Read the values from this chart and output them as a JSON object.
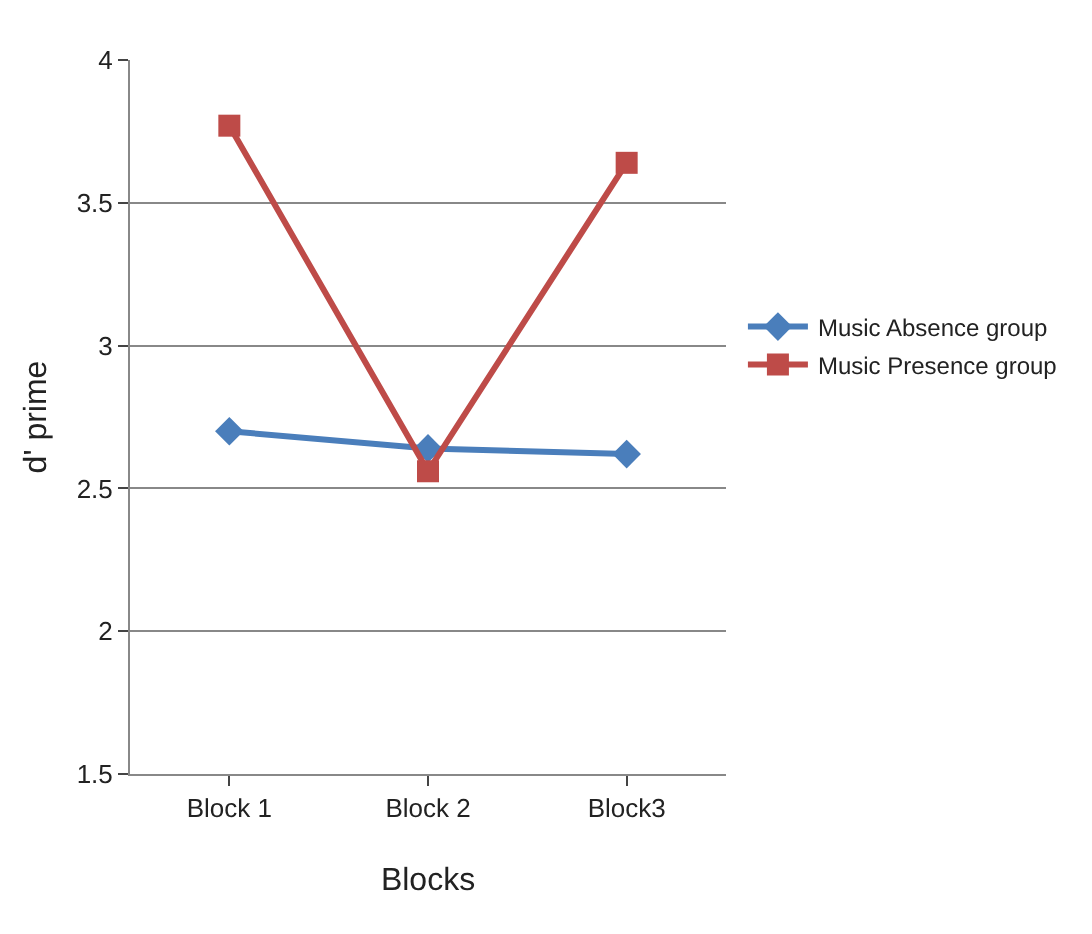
{
  "chart_data": {
    "type": "line",
    "xlabel": "Blocks",
    "ylabel": "d' prime",
    "categories": [
      "Block 1",
      "Block 2",
      "Block3"
    ],
    "series": [
      {
        "name": "Music Absence group",
        "color": "#4a7ebb",
        "marker": "diamond",
        "values": [
          2.7,
          2.64,
          2.62
        ]
      },
      {
        "name": "Music Presence group",
        "color": "#be4b48",
        "marker": "square",
        "values": [
          3.77,
          2.56,
          3.64
        ]
      }
    ],
    "ylim": [
      1.5,
      4
    ],
    "yticks": [
      1.5,
      2,
      2.5,
      3,
      3.5,
      4
    ],
    "grid": "y",
    "legend": "right",
    "line_style": "solid"
  }
}
